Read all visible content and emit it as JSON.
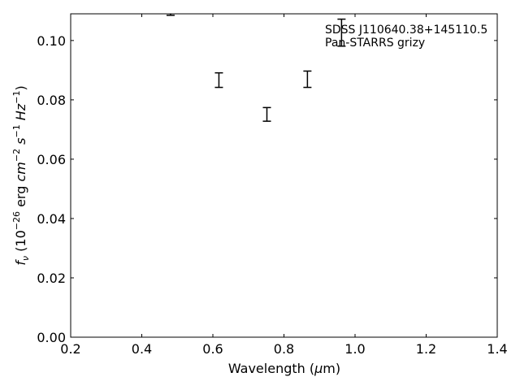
{
  "chart_data": {
    "type": "scatter",
    "title": "",
    "xlabel": "Wavelength (μm)",
    "ylabel": "f_ν (10^-26 erg cm^-2 s^-1 Hz^-1)",
    "ylabel_parts": {
      "f": "f",
      "nu": "ν",
      "open": " (10",
      "exp1": "−26",
      "erg": " erg ",
      "cm": "cm",
      "exp2": "−2",
      "s": " s",
      "exp3": "−1",
      "hz": " Hz",
      "exp4": "−1",
      "close": ")"
    },
    "xlabel_parts": {
      "text": "Wavelength (",
      "mu": "μ",
      "m": "m)"
    },
    "xlim": [
      0.2,
      1.4
    ],
    "ylim": [
      0.0,
      0.109
    ],
    "xticks": [
      0.2,
      0.4,
      0.6,
      0.8,
      1.0,
      1.2,
      1.4
    ],
    "xtick_labels": [
      "0.2",
      "0.4",
      "0.6",
      "0.8",
      "1.0",
      "1.2",
      "1.4"
    ],
    "yticks": [
      0.0,
      0.02,
      0.04,
      0.06,
      0.08,
      0.1
    ],
    "ytick_labels": [
      "0.00",
      "0.02",
      "0.04",
      "0.06",
      "0.08",
      "0.10"
    ],
    "grid": false,
    "annotation": [
      "SDSS J110640.38+145110.5",
      "Pan-STARRS grizy"
    ],
    "annotation_position": "top-right",
    "series": [
      {
        "points": [
          {
            "band": "g",
            "x": 0.481,
            "low": 0.1085,
            "high": 0.1115
          },
          {
            "band": "r",
            "x": 0.617,
            "low": 0.0842,
            "high": 0.0891
          },
          {
            "band": "i",
            "x": 0.752,
            "low": 0.0728,
            "high": 0.0774
          },
          {
            "band": "z",
            "x": 0.866,
            "low": 0.0842,
            "high": 0.0897
          },
          {
            "band": "y",
            "x": 0.962,
            "low": 0.0981,
            "high": 0.1072
          }
        ]
      }
    ]
  }
}
